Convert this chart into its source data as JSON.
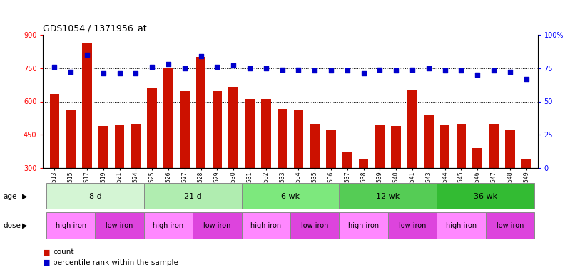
{
  "title": "GDS1054 / 1371956_at",
  "samples": [
    "GSM33513",
    "GSM33515",
    "GSM33517",
    "GSM33519",
    "GSM33521",
    "GSM33524",
    "GSM33525",
    "GSM33526",
    "GSM33527",
    "GSM33528",
    "GSM33529",
    "GSM33530",
    "GSM33531",
    "GSM33532",
    "GSM33533",
    "GSM33534",
    "GSM33535",
    "GSM33536",
    "GSM33537",
    "GSM33538",
    "GSM33539",
    "GSM33540",
    "GSM33541",
    "GSM33543",
    "GSM33544",
    "GSM33545",
    "GSM33546",
    "GSM33547",
    "GSM33548",
    "GSM33549"
  ],
  "counts": [
    635,
    560,
    860,
    490,
    495,
    500,
    660,
    750,
    645,
    800,
    645,
    665,
    610,
    610,
    565,
    560,
    500,
    475,
    375,
    340,
    495,
    490,
    650,
    540,
    495,
    500,
    390,
    500,
    475,
    340
  ],
  "percentiles": [
    76,
    72,
    85,
    71,
    71,
    71,
    76,
    78,
    75,
    84,
    76,
    77,
    75,
    75,
    74,
    74,
    73,
    73,
    73,
    71,
    74,
    73,
    74,
    75,
    73,
    73,
    70,
    73,
    72,
    67
  ],
  "age_groups": [
    {
      "label": "8 d",
      "start": 0,
      "end": 6
    },
    {
      "label": "21 d",
      "start": 6,
      "end": 12
    },
    {
      "label": "6 wk",
      "start": 12,
      "end": 18
    },
    {
      "label": "12 wk",
      "start": 18,
      "end": 24
    },
    {
      "label": "36 wk",
      "start": 24,
      "end": 30
    }
  ],
  "age_colors": [
    "#d4f5d4",
    "#b0edb0",
    "#7de87d",
    "#55cc55",
    "#33bb33"
  ],
  "dose_groups": [
    {
      "label": "high iron",
      "start": 0,
      "end": 3
    },
    {
      "label": "low iron",
      "start": 3,
      "end": 6
    },
    {
      "label": "high iron",
      "start": 6,
      "end": 9
    },
    {
      "label": "low iron",
      "start": 9,
      "end": 12
    },
    {
      "label": "high iron",
      "start": 12,
      "end": 15
    },
    {
      "label": "low iron",
      "start": 15,
      "end": 18
    },
    {
      "label": "high iron",
      "start": 18,
      "end": 21
    },
    {
      "label": "low iron",
      "start": 21,
      "end": 24
    },
    {
      "label": "high iron",
      "start": 24,
      "end": 27
    },
    {
      "label": "low iron",
      "start": 27,
      "end": 30
    }
  ],
  "dose_color_hi": "#ff88ff",
  "dose_color_lo": "#dd44dd",
  "ylim_left": [
    300,
    900
  ],
  "ylim_right": [
    0,
    100
  ],
  "yticks_left": [
    300,
    450,
    600,
    750,
    900
  ],
  "yticks_right": [
    0,
    25,
    50,
    75,
    100
  ],
  "bar_color": "#cc1100",
  "dot_color": "#0000cc",
  "bg_color": "#ffffff",
  "age_label": "age",
  "dose_label": "dose"
}
